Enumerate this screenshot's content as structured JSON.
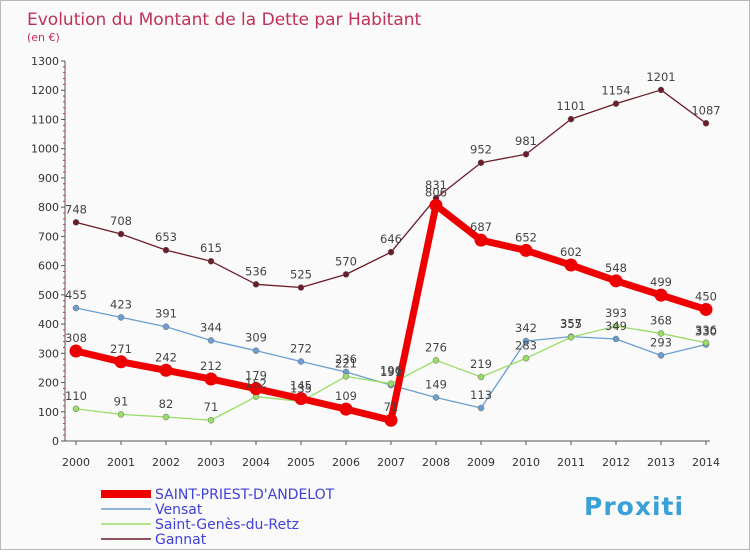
{
  "chart_data": {
    "type": "line",
    "title": "Evolution du Montant de la Dette par Habitant",
    "subtitle": "(en €)",
    "x": [
      "2000",
      "2001",
      "2002",
      "2003",
      "2004",
      "2005",
      "2006",
      "2007",
      "2008",
      "2009",
      "2010",
      "2011",
      "2012",
      "2013",
      "2014"
    ],
    "ylim": [
      0,
      1300
    ],
    "yticks": [
      0,
      100,
      200,
      300,
      400,
      500,
      600,
      700,
      800,
      900,
      1000,
      1100,
      1200,
      1300
    ],
    "grid": false,
    "legend_position": "bottom-left",
    "series": [
      {
        "name": "SAINT-PRIEST-D'ANDELOT",
        "color": "#ee0000",
        "highlight": true,
        "values": [
          308,
          271,
          242,
          212,
          179,
          145,
          109,
          71,
          806,
          687,
          652,
          602,
          548,
          499,
          450
        ]
      },
      {
        "name": "Vensat",
        "color": "#6b9fd1",
        "highlight": false,
        "values": [
          455,
          423,
          391,
          344,
          309,
          272,
          236,
          191,
          149,
          113,
          342,
          357,
          349,
          293,
          330
        ]
      },
      {
        "name": "Saint-Genès-du-Retz",
        "color": "#99dd66",
        "highlight": false,
        "values": [
          110,
          91,
          82,
          71,
          152,
          135,
          221,
          196,
          276,
          219,
          283,
          355,
          393,
          368,
          336
        ]
      },
      {
        "name": "Gannat",
        "color": "#6b1c2a",
        "highlight": false,
        "values": [
          748,
          708,
          653,
          615,
          536,
          525,
          570,
          646,
          831,
          952,
          981,
          1101,
          1154,
          1201,
          1087
        ]
      }
    ]
  },
  "logo": {
    "text": "Proxiti"
  }
}
